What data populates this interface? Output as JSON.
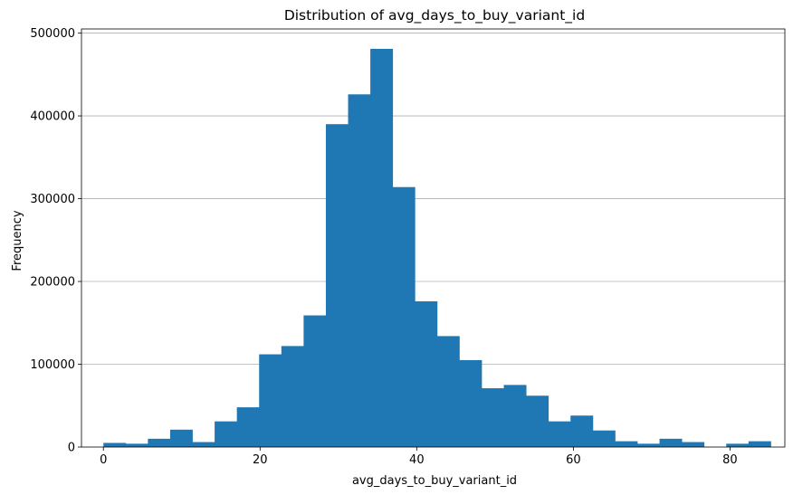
{
  "chart_data": {
    "type": "bar",
    "title": "Distribution of avg_days_to_buy_variant_id",
    "xlabel": "avg_days_to_buy_variant_id",
    "ylabel": "Frequency",
    "xlim": [
      -2.8,
      87
    ],
    "ylim": [
      0,
      505000
    ],
    "bin_width": 2.84,
    "bin_start": 0,
    "x_ticks": [
      0,
      20,
      40,
      60,
      80
    ],
    "y_ticks": [
      0,
      100000,
      200000,
      300000,
      400000,
      500000
    ],
    "grid": "y",
    "legend": "none",
    "bar_color": "#1f77b4",
    "values": [
      5000,
      4000,
      10000,
      21000,
      6000,
      31000,
      48000,
      112000,
      122000,
      159000,
      390000,
      426000,
      481000,
      314000,
      176000,
      134000,
      105000,
      71000,
      75000,
      62000,
      31000,
      38000,
      20000,
      7000,
      4000,
      10000,
      6000,
      0,
      4000,
      7000
    ]
  }
}
